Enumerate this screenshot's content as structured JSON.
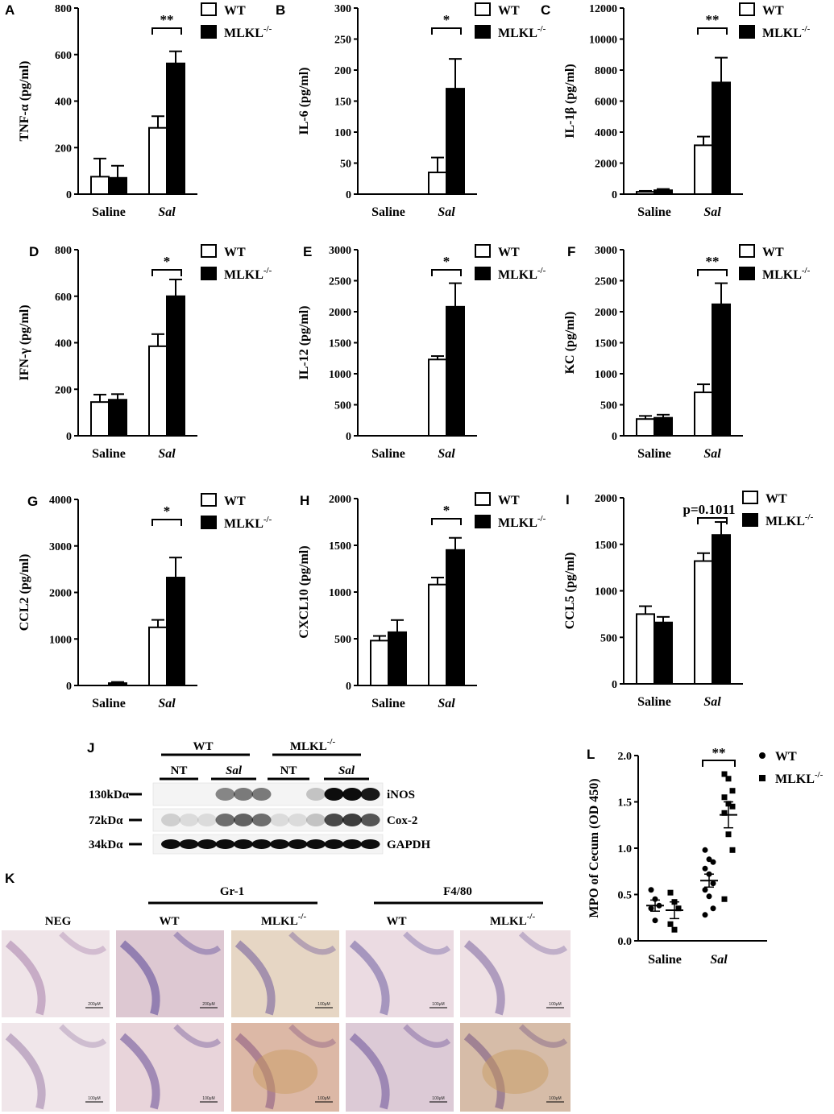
{
  "legend": {
    "wt": "WT",
    "ko": "MLKL",
    "ko_sup": "-/-"
  },
  "chart_data": [
    {
      "panel": "A",
      "type": "bar",
      "ylabel": "TNF-α (pg/ml)",
      "ylim": [
        0,
        800
      ],
      "yticks": [
        "0",
        "200",
        "400",
        "600",
        "800"
      ],
      "categories": [
        "Saline",
        "Sal"
      ],
      "series": [
        {
          "name": "WT",
          "values": [
            75,
            285
          ],
          "errors": [
            78,
            50
          ]
        },
        {
          "name": "MLKL-/-",
          "values": [
            70,
            562
          ],
          "errors": [
            52,
            52
          ]
        }
      ],
      "annotation": "**"
    },
    {
      "panel": "B",
      "type": "bar",
      "ylabel": "IL-6 (pg/ml)",
      "ylim": [
        0,
        300
      ],
      "yticks": [
        "0",
        "50",
        "100",
        "150",
        "200",
        "250",
        "300"
      ],
      "categories": [
        "Saline",
        "Sal"
      ],
      "series": [
        {
          "name": "WT",
          "values": [
            0,
            35
          ],
          "errors": [
            0,
            24
          ]
        },
        {
          "name": "MLKL-/-",
          "values": [
            0,
            170
          ],
          "errors": [
            0,
            48
          ]
        }
      ],
      "annotation": "*"
    },
    {
      "panel": "C",
      "type": "bar",
      "ylabel": "IL-1β (pg/ml)",
      "ylim": [
        0,
        12000
      ],
      "yticks": [
        "0",
        "2000",
        "4000",
        "6000",
        "8000",
        "10000",
        "12000"
      ],
      "categories": [
        "Saline",
        "Sal"
      ],
      "series": [
        {
          "name": "WT",
          "values": [
            150,
            3150
          ],
          "errors": [
            60,
            560
          ]
        },
        {
          "name": "MLKL-/-",
          "values": [
            250,
            7200
          ],
          "errors": [
            80,
            1600
          ]
        }
      ],
      "annotation": "**"
    },
    {
      "panel": "D",
      "type": "bar",
      "ylabel": "IFN-γ (pg/ml)",
      "ylim": [
        0,
        800
      ],
      "yticks": [
        "0",
        "200",
        "400",
        "600",
        "800"
      ],
      "categories": [
        "Saline",
        "Sal"
      ],
      "series": [
        {
          "name": "WT",
          "values": [
            145,
            385
          ],
          "errors": [
            32,
            52
          ]
        },
        {
          "name": "MLKL-/-",
          "values": [
            155,
            600
          ],
          "errors": [
            24,
            72
          ]
        }
      ],
      "annotation": "*"
    },
    {
      "panel": "E",
      "type": "bar",
      "ylabel": "IL-12 (pg/ml)",
      "ylim": [
        0,
        3000
      ],
      "yticks": [
        "0",
        "500",
        "1000",
        "1500",
        "2000",
        "2500",
        "3000"
      ],
      "categories": [
        "Saline",
        "Sal"
      ],
      "series": [
        {
          "name": "WT",
          "values": [
            0,
            1230
          ],
          "errors": [
            0,
            55
          ]
        },
        {
          "name": "MLKL-/-",
          "values": [
            0,
            2080
          ],
          "errors": [
            0,
            380
          ]
        }
      ],
      "annotation": "*"
    },
    {
      "panel": "F",
      "type": "bar",
      "ylabel": "KC (pg/ml)",
      "ylim": [
        0,
        3000
      ],
      "yticks": [
        "0",
        "500",
        "1000",
        "1500",
        "2000",
        "2500",
        "3000"
      ],
      "categories": [
        "Saline",
        "Sal"
      ],
      "series": [
        {
          "name": "WT",
          "values": [
            270,
            700
          ],
          "errors": [
            50,
            130
          ]
        },
        {
          "name": "MLKL-/-",
          "values": [
            290,
            2120
          ],
          "errors": [
            50,
            340
          ]
        }
      ],
      "annotation": "**"
    },
    {
      "panel": "G",
      "type": "bar",
      "ylabel": "CCL2 (pg/ml)",
      "ylim": [
        0,
        4000
      ],
      "yticks": [
        "0",
        "1000",
        "2000",
        "3000",
        "4000"
      ],
      "categories": [
        "Saline",
        "Sal"
      ],
      "series": [
        {
          "name": "WT",
          "values": [
            0,
            1250
          ],
          "errors": [
            0,
            160
          ]
        },
        {
          "name": "MLKL-/-",
          "values": [
            50,
            2320
          ],
          "errors": [
            25,
            430
          ]
        }
      ],
      "annotation": "*"
    },
    {
      "panel": "H",
      "type": "bar",
      "ylabel": "CXCL10 (pg/ml)",
      "ylim": [
        0,
        2000
      ],
      "yticks": [
        "0",
        "500",
        "1000",
        "1500",
        "2000"
      ],
      "categories": [
        "Saline",
        "Sal"
      ],
      "series": [
        {
          "name": "WT",
          "values": [
            480,
            1080
          ],
          "errors": [
            50,
            75
          ]
        },
        {
          "name": "MLKL-/-",
          "values": [
            570,
            1450
          ],
          "errors": [
            130,
            130
          ]
        }
      ],
      "annotation": "*"
    },
    {
      "panel": "I",
      "type": "bar",
      "ylabel": "CCL5 (pg/ml)",
      "ylim": [
        0,
        2000
      ],
      "yticks": [
        "0",
        "500",
        "1000",
        "1500",
        "2000"
      ],
      "categories": [
        "Saline",
        "Sal"
      ],
      "series": [
        {
          "name": "WT",
          "values": [
            750,
            1320
          ],
          "errors": [
            85,
            85
          ]
        },
        {
          "name": "MLKL-/-",
          "values": [
            660,
            1600
          ],
          "errors": [
            60,
            140
          ]
        }
      ],
      "annotation": "p=0.1011"
    },
    {
      "panel": "L",
      "type": "scatter",
      "ylabel": "MPO of Cecum (OD 450)",
      "ylim": [
        0,
        2.0
      ],
      "yticks": [
        "0.0",
        "0.5",
        "1.0",
        "1.5",
        "2.0"
      ],
      "categories": [
        "Saline",
        "Sal"
      ],
      "series": [
        {
          "name": "WT",
          "groups": [
            [
              0.55,
              0.45,
              0.38,
              0.35,
              0.22
            ],
            [
              0.98,
              0.88,
              0.85,
              0.78,
              0.72,
              0.62,
              0.55,
              0.48,
              0.35,
              0.28
            ]
          ],
          "means": [
            0.38,
            0.65
          ],
          "sems": [
            0.06,
            0.07
          ]
        },
        {
          "name": "MLKL-/-",
          "groups": [
            [
              0.52,
              0.42,
              0.35,
              0.18,
              0.12
            ],
            [
              1.8,
              1.75,
              1.62,
              1.55,
              1.48,
              1.45,
              1.38,
              1.15,
              0.98,
              0.45
            ]
          ],
          "means": [
            0.33,
            1.36
          ],
          "sems": [
            0.09,
            0.14
          ]
        }
      ],
      "annotation": "**"
    }
  ],
  "panel_j": {
    "letter": "J",
    "group_labels": [
      "WT",
      "MLKL"
    ],
    "group_sup": "-/-",
    "lane_labels": [
      "NT",
      "Sal",
      "NT",
      "Sal"
    ],
    "markers": [
      "130kDα",
      "72kDα",
      "34kDα"
    ],
    "bands": [
      "iNOS",
      "Cox-2",
      "GAPDH"
    ]
  },
  "panel_k": {
    "letter": "K",
    "group_labels": [
      "Gr-1",
      "F4/80"
    ],
    "column_labels": [
      "NEG",
      "WT",
      "MLKL",
      "WT",
      "MLKL"
    ],
    "column_sup": "-/-",
    "scale_labels": [
      "200μM",
      "200μM",
      "100μM",
      "100μM",
      "100μM",
      "100μM",
      "100μM",
      "100μM",
      "100μM",
      "100μM"
    ]
  }
}
